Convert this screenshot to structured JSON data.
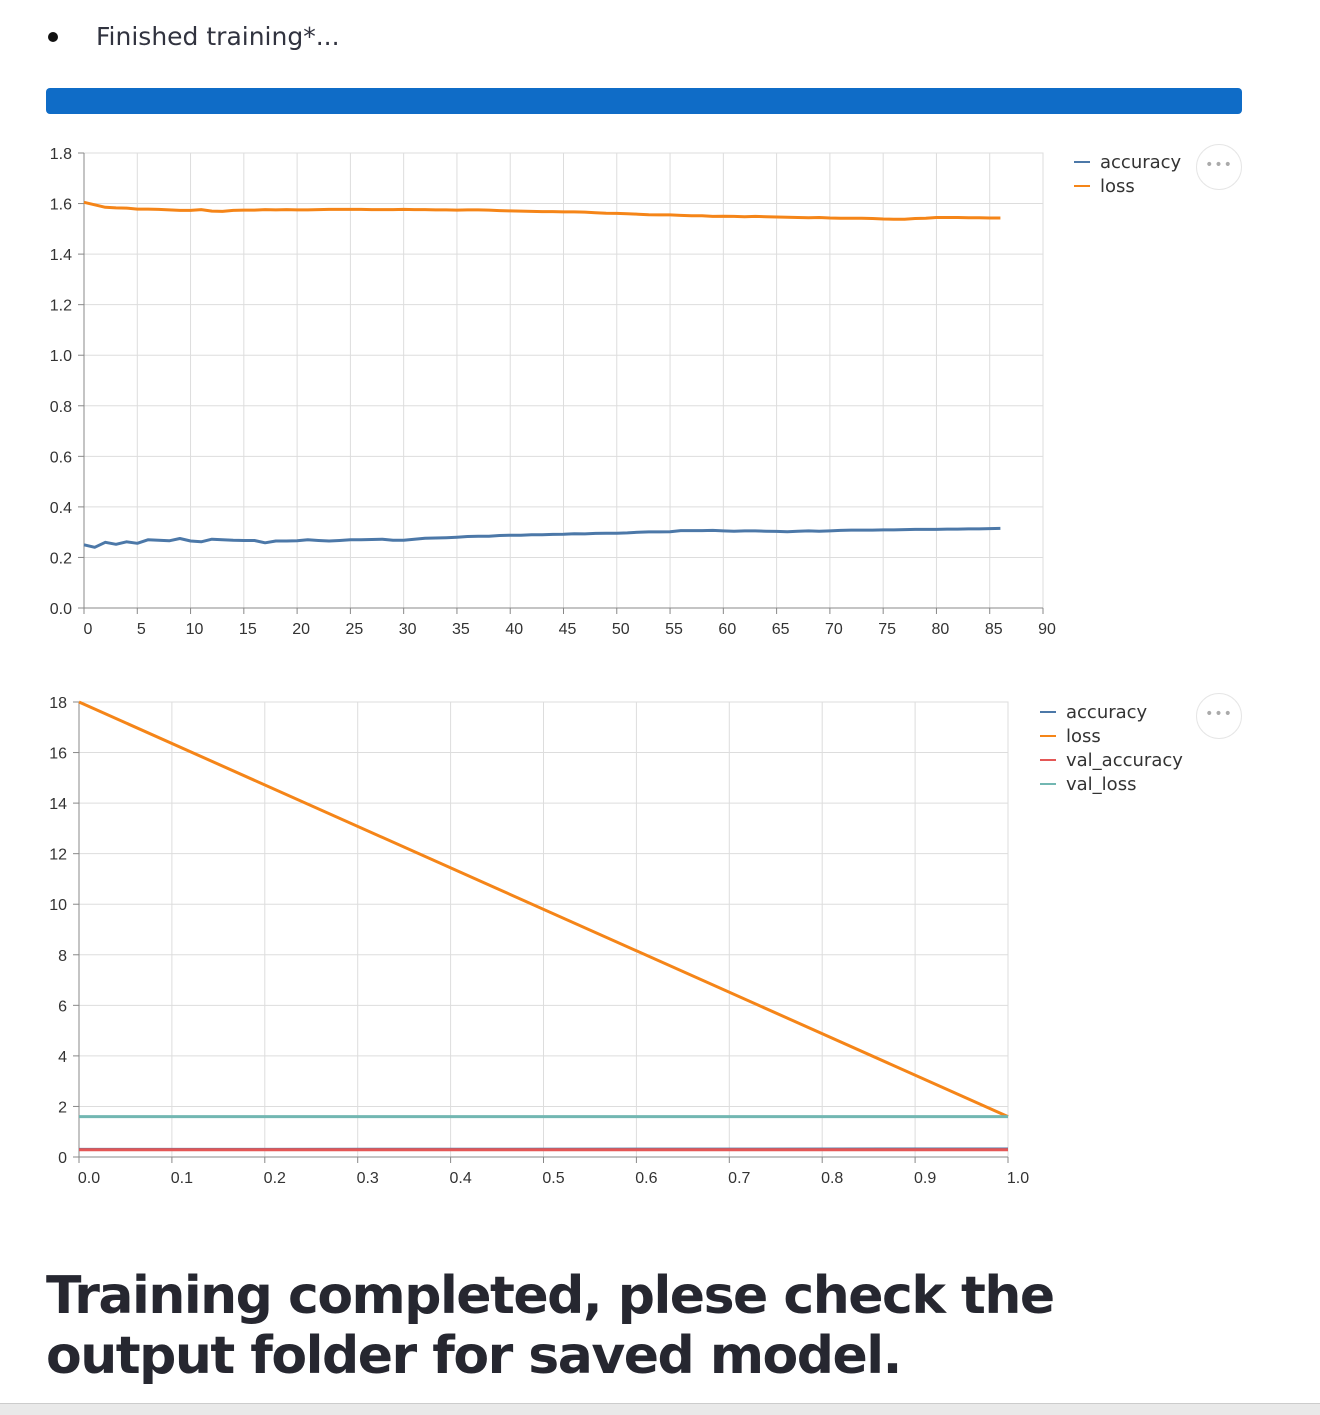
{
  "status": {
    "text": "Finished training*...",
    "progress_percent": 100,
    "bar_color": "#0f6cc7"
  },
  "message": "Training completed, plese check the output folder for saved model.",
  "menu_icon": "more-horizontal-icon",
  "colors": {
    "accuracy": "#4c78a8",
    "loss": "#f58518",
    "val_accuracy": "#e45756",
    "val_loss": "#72b7b2"
  },
  "chart_data": [
    {
      "type": "line",
      "xlim": [
        0,
        90
      ],
      "ylim": [
        0,
        1.8
      ],
      "xticks": [
        0,
        5,
        10,
        15,
        20,
        25,
        30,
        35,
        40,
        45,
        50,
        55,
        60,
        65,
        70,
        75,
        80,
        85,
        90
      ],
      "yticks": [
        "0.0",
        "0.2",
        "0.4",
        "0.6",
        "0.8",
        "1.0",
        "1.2",
        "1.4",
        "1.6",
        "1.8"
      ],
      "grid": true,
      "legend": "right",
      "series": [
        {
          "name": "accuracy",
          "values": [
            0.25,
            0.24,
            0.26,
            0.252,
            0.262,
            0.256,
            0.27,
            0.268,
            0.266,
            0.275,
            0.265,
            0.262,
            0.272,
            0.27,
            0.268,
            0.267,
            0.267,
            0.258,
            0.265,
            0.265,
            0.266,
            0.27,
            0.267,
            0.265,
            0.267,
            0.27,
            0.27,
            0.271,
            0.272,
            0.268,
            0.268,
            0.272,
            0.276,
            0.277,
            0.278,
            0.28,
            0.283,
            0.284,
            0.284,
            0.287,
            0.288,
            0.288,
            0.29,
            0.29,
            0.291,
            0.292,
            0.294,
            0.293,
            0.295,
            0.296,
            0.296,
            0.297,
            0.3,
            0.301,
            0.301,
            0.302,
            0.306,
            0.306,
            0.306,
            0.307,
            0.305,
            0.304,
            0.305,
            0.305,
            0.304,
            0.303,
            0.302,
            0.304,
            0.305,
            0.304,
            0.305,
            0.307,
            0.308,
            0.308,
            0.308,
            0.309,
            0.309,
            0.31,
            0.311,
            0.311,
            0.311,
            0.312,
            0.312,
            0.313,
            0.313,
            0.314,
            0.315
          ]
        },
        {
          "name": "loss",
          "values": [
            1.605,
            1.595,
            1.585,
            1.583,
            1.582,
            1.578,
            1.578,
            1.577,
            1.575,
            1.573,
            1.573,
            1.576,
            1.57,
            1.569,
            1.573,
            1.574,
            1.574,
            1.576,
            1.575,
            1.576,
            1.575,
            1.575,
            1.576,
            1.577,
            1.577,
            1.577,
            1.577,
            1.576,
            1.576,
            1.576,
            1.577,
            1.576,
            1.576,
            1.575,
            1.575,
            1.574,
            1.575,
            1.575,
            1.574,
            1.572,
            1.571,
            1.57,
            1.569,
            1.568,
            1.568,
            1.567,
            1.567,
            1.566,
            1.564,
            1.562,
            1.561,
            1.56,
            1.558,
            1.556,
            1.555,
            1.555,
            1.553,
            1.552,
            1.552,
            1.549,
            1.55,
            1.549,
            1.548,
            1.549,
            1.548,
            1.547,
            1.546,
            1.545,
            1.544,
            1.545,
            1.543,
            1.542,
            1.542,
            1.542,
            1.541,
            1.539,
            1.538,
            1.538,
            1.541,
            1.542,
            1.545,
            1.545,
            1.545,
            1.544,
            1.544,
            1.543,
            1.543
          ]
        }
      ]
    },
    {
      "type": "line",
      "xlim": [
        0,
        1
      ],
      "ylim": [
        0,
        18
      ],
      "xticks": [
        "0.0",
        "0.1",
        "0.2",
        "0.3",
        "0.4",
        "0.5",
        "0.6",
        "0.7",
        "0.8",
        "0.9",
        "1.0"
      ],
      "yticks": [
        "0",
        "2",
        "4",
        "6",
        "8",
        "10",
        "12",
        "14",
        "16",
        "18"
      ],
      "grid": true,
      "legend": "right",
      "x": [
        0,
        1
      ],
      "series": [
        {
          "name": "accuracy",
          "values": [
            0.3,
            0.315
          ]
        },
        {
          "name": "loss",
          "values": [
            18.0,
            1.6
          ]
        },
        {
          "name": "val_accuracy",
          "values": [
            0.29,
            0.29
          ]
        },
        {
          "name": "val_loss",
          "values": [
            1.6,
            1.6
          ]
        }
      ]
    }
  ]
}
